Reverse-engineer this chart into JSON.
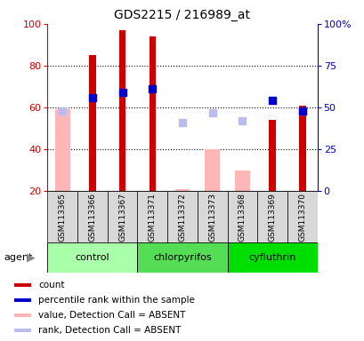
{
  "title": "GDS2215 / 216989_at",
  "samples": [
    "GSM113365",
    "GSM113366",
    "GSM113367",
    "GSM113371",
    "GSM113372",
    "GSM113373",
    "GSM113368",
    "GSM113369",
    "GSM113370"
  ],
  "red_bars": [
    null,
    85,
    97,
    94,
    null,
    null,
    null,
    54,
    61
  ],
  "blue_markers": [
    null,
    56,
    59,
    61,
    null,
    null,
    null,
    54,
    48
  ],
  "pink_bars": [
    59,
    null,
    null,
    null,
    21,
    40,
    30,
    null,
    null
  ],
  "lavender_markers": [
    48,
    null,
    null,
    null,
    41,
    47,
    42,
    null,
    48
  ],
  "group_names": [
    "control",
    "chlorpyrifos",
    "cyfluthrin"
  ],
  "group_starts": [
    0,
    3,
    6
  ],
  "group_ends": [
    2,
    5,
    8
  ],
  "group_colors": [
    "#AAFFAA",
    "#55DD55",
    "#00DD00"
  ],
  "ylim_left": [
    20,
    100
  ],
  "ylim_right": [
    0,
    100
  ],
  "yticks_left": [
    20,
    40,
    60,
    80,
    100
  ],
  "yticks_right": [
    0,
    25,
    50,
    75,
    100
  ],
  "ytick_labels_right": [
    "0",
    "25",
    "50",
    "75",
    "100%"
  ],
  "left_axis_color": "#CC0000",
  "right_axis_color": "#0000CC",
  "legend_labels": [
    "count",
    "percentile rank within the sample",
    "value, Detection Call = ABSENT",
    "rank, Detection Call = ABSENT"
  ],
  "legend_colors": [
    "#CC0000",
    "#0000CC",
    "#FFB6B6",
    "#BBBBEE"
  ]
}
